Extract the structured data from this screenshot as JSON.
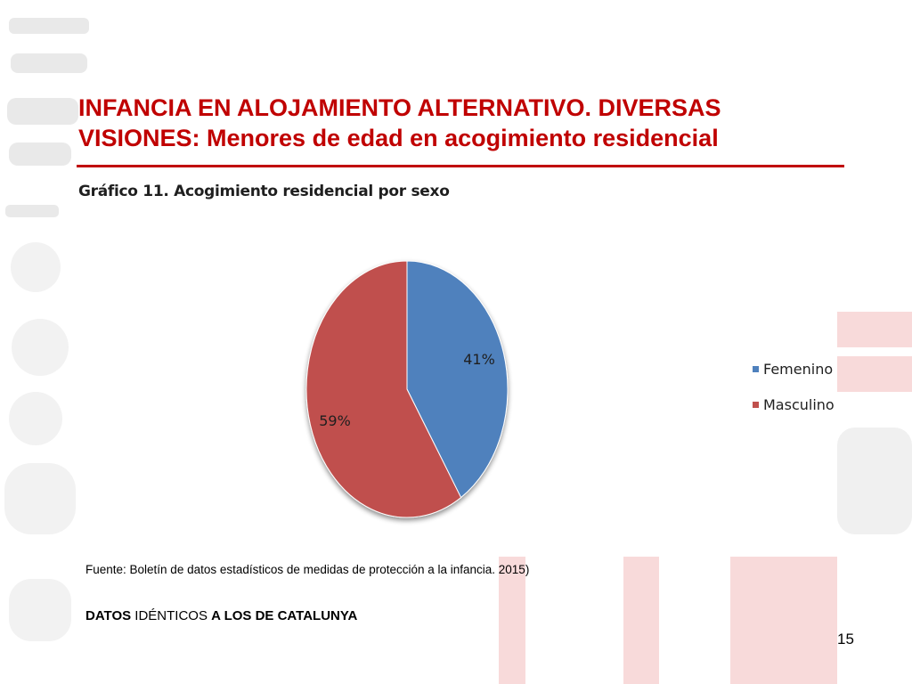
{
  "slide": {
    "title_line1": "INFANCIA EN ALOJAMIENTO ALTERNATIVO. DIVERSAS",
    "title_line2": "VISIONES: Menores de edad en acogimiento residencial",
    "source": "Fuente: Boletín de datos estadísticos de medidas de protección a la infancia. 2015)",
    "conclusion_part1": "DATOS",
    "conclusion_part2": " IDÉNTICOS ",
    "conclusion_part3": "A LOS DE CATALUNYA",
    "page_number": "15",
    "accent_color": "#c00000"
  },
  "chart_data": {
    "type": "pie",
    "title": "Gráfico  11. Acogimiento residencial por sexo",
    "categories": [
      "Femenino",
      "Masculino"
    ],
    "values": [
      41,
      59
    ],
    "labels": [
      "41%",
      "59%"
    ],
    "colors": [
      "#4f81bd",
      "#c0504d"
    ],
    "legend_position": "right"
  }
}
